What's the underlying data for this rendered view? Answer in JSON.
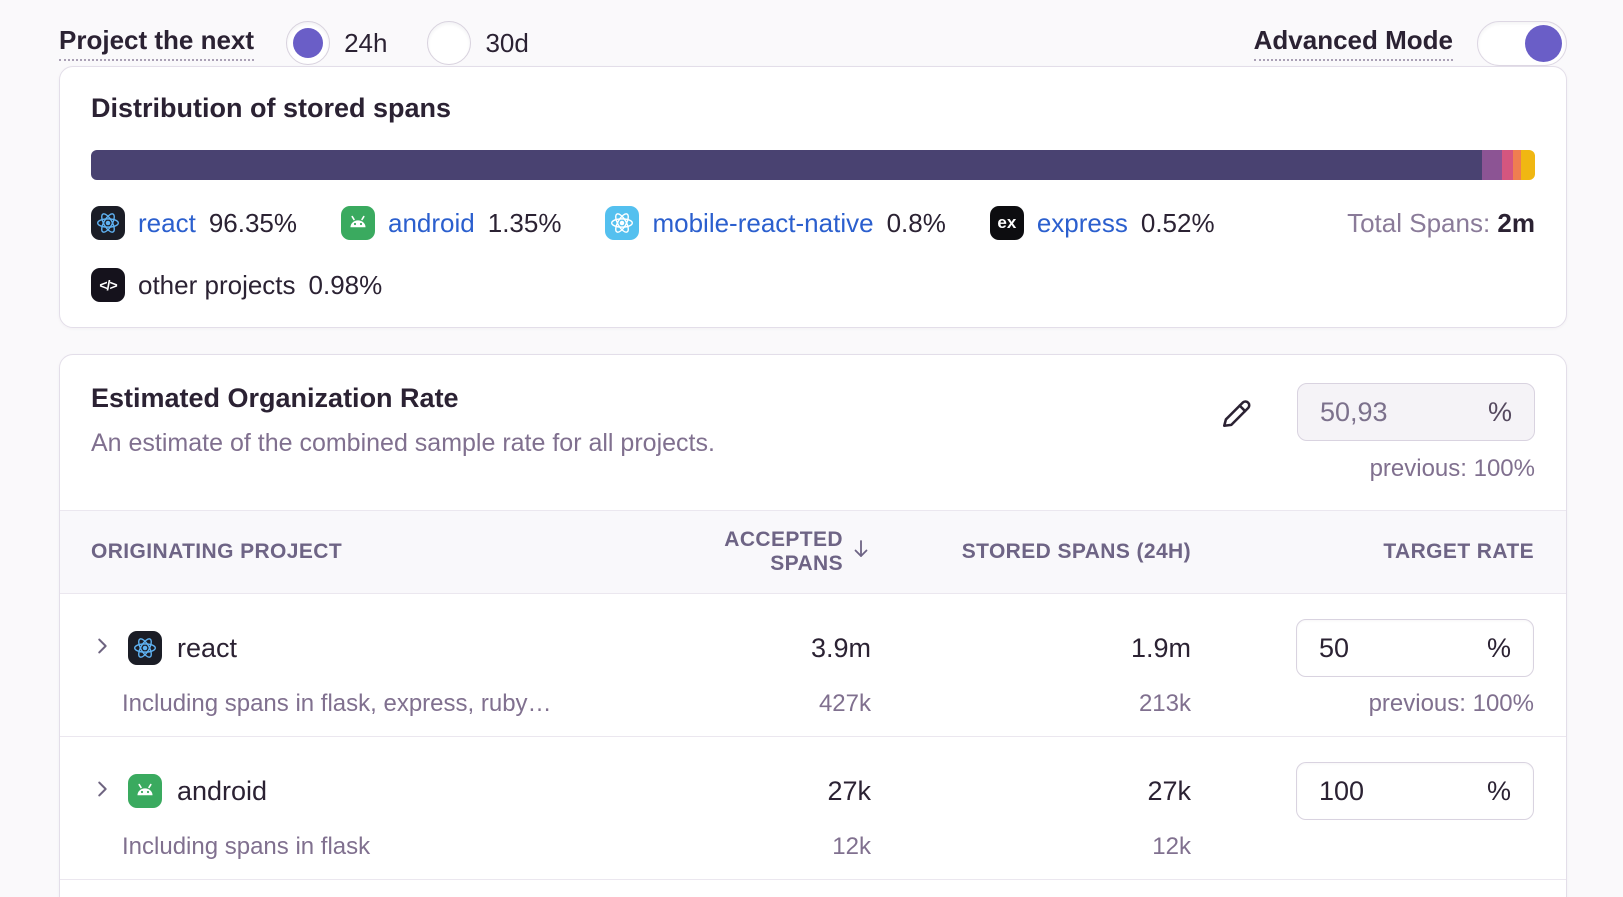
{
  "controls": {
    "project_next_label": "Project the next",
    "radio_options": [
      {
        "label": "24h",
        "selected": true
      },
      {
        "label": "30d",
        "selected": false
      }
    ],
    "advanced_mode_label": "Advanced Mode",
    "advanced_mode_state": "on",
    "accent_color": "#6a5ec7"
  },
  "distribution_card": {
    "title": "Distribution of stored spans",
    "total_spans_label": "Total Spans:",
    "total_spans_value": "2m",
    "segments": [
      {
        "name": "react",
        "pct_label": "96.35%",
        "pct": 96.35,
        "color": "#494271",
        "icon": "react"
      },
      {
        "name": "android",
        "pct_label": "1.35%",
        "pct": 1.35,
        "color": "#8c5494",
        "icon": "android"
      },
      {
        "name": "mobile-react-native",
        "pct_label": "0.8%",
        "pct": 0.8,
        "color": "#d4567f",
        "icon": "react-native"
      },
      {
        "name": "express",
        "pct_label": "0.52%",
        "pct": 0.52,
        "color": "#ef7e50",
        "icon": "express"
      },
      {
        "name": "other projects",
        "pct_label": "0.98%",
        "pct": 0.98,
        "color": "#f0b712",
        "icon": "code"
      }
    ],
    "express_icon_text": "ex",
    "code_icon_text": "</>"
  },
  "org_rate_card": {
    "title": "Estimated Organization Rate",
    "subtitle": "An estimate of the combined sample rate for all projects.",
    "rate_value": "50,93",
    "rate_unit": "%",
    "previous": "previous: 100%"
  },
  "table": {
    "columns": {
      "project": "Originating Project",
      "accepted": "Accepted Spans",
      "stored": "Stored Spans (24h)",
      "target": "Target Rate"
    },
    "rows": [
      {
        "project": "react",
        "note": "Including spans in flask, express, ruby…",
        "accepted": "3.9m",
        "accepted_sub": "427k",
        "stored": "1.9m",
        "stored_sub": "213k",
        "rate": "50",
        "rate_unit": "%",
        "previous": "previous: 100%"
      },
      {
        "project": "android",
        "note": "Including spans in flask",
        "accepted": "27k",
        "accepted_sub": "12k",
        "stored": "27k",
        "stored_sub": "12k",
        "rate": "100",
        "rate_unit": "%",
        "previous": ""
      }
    ]
  }
}
